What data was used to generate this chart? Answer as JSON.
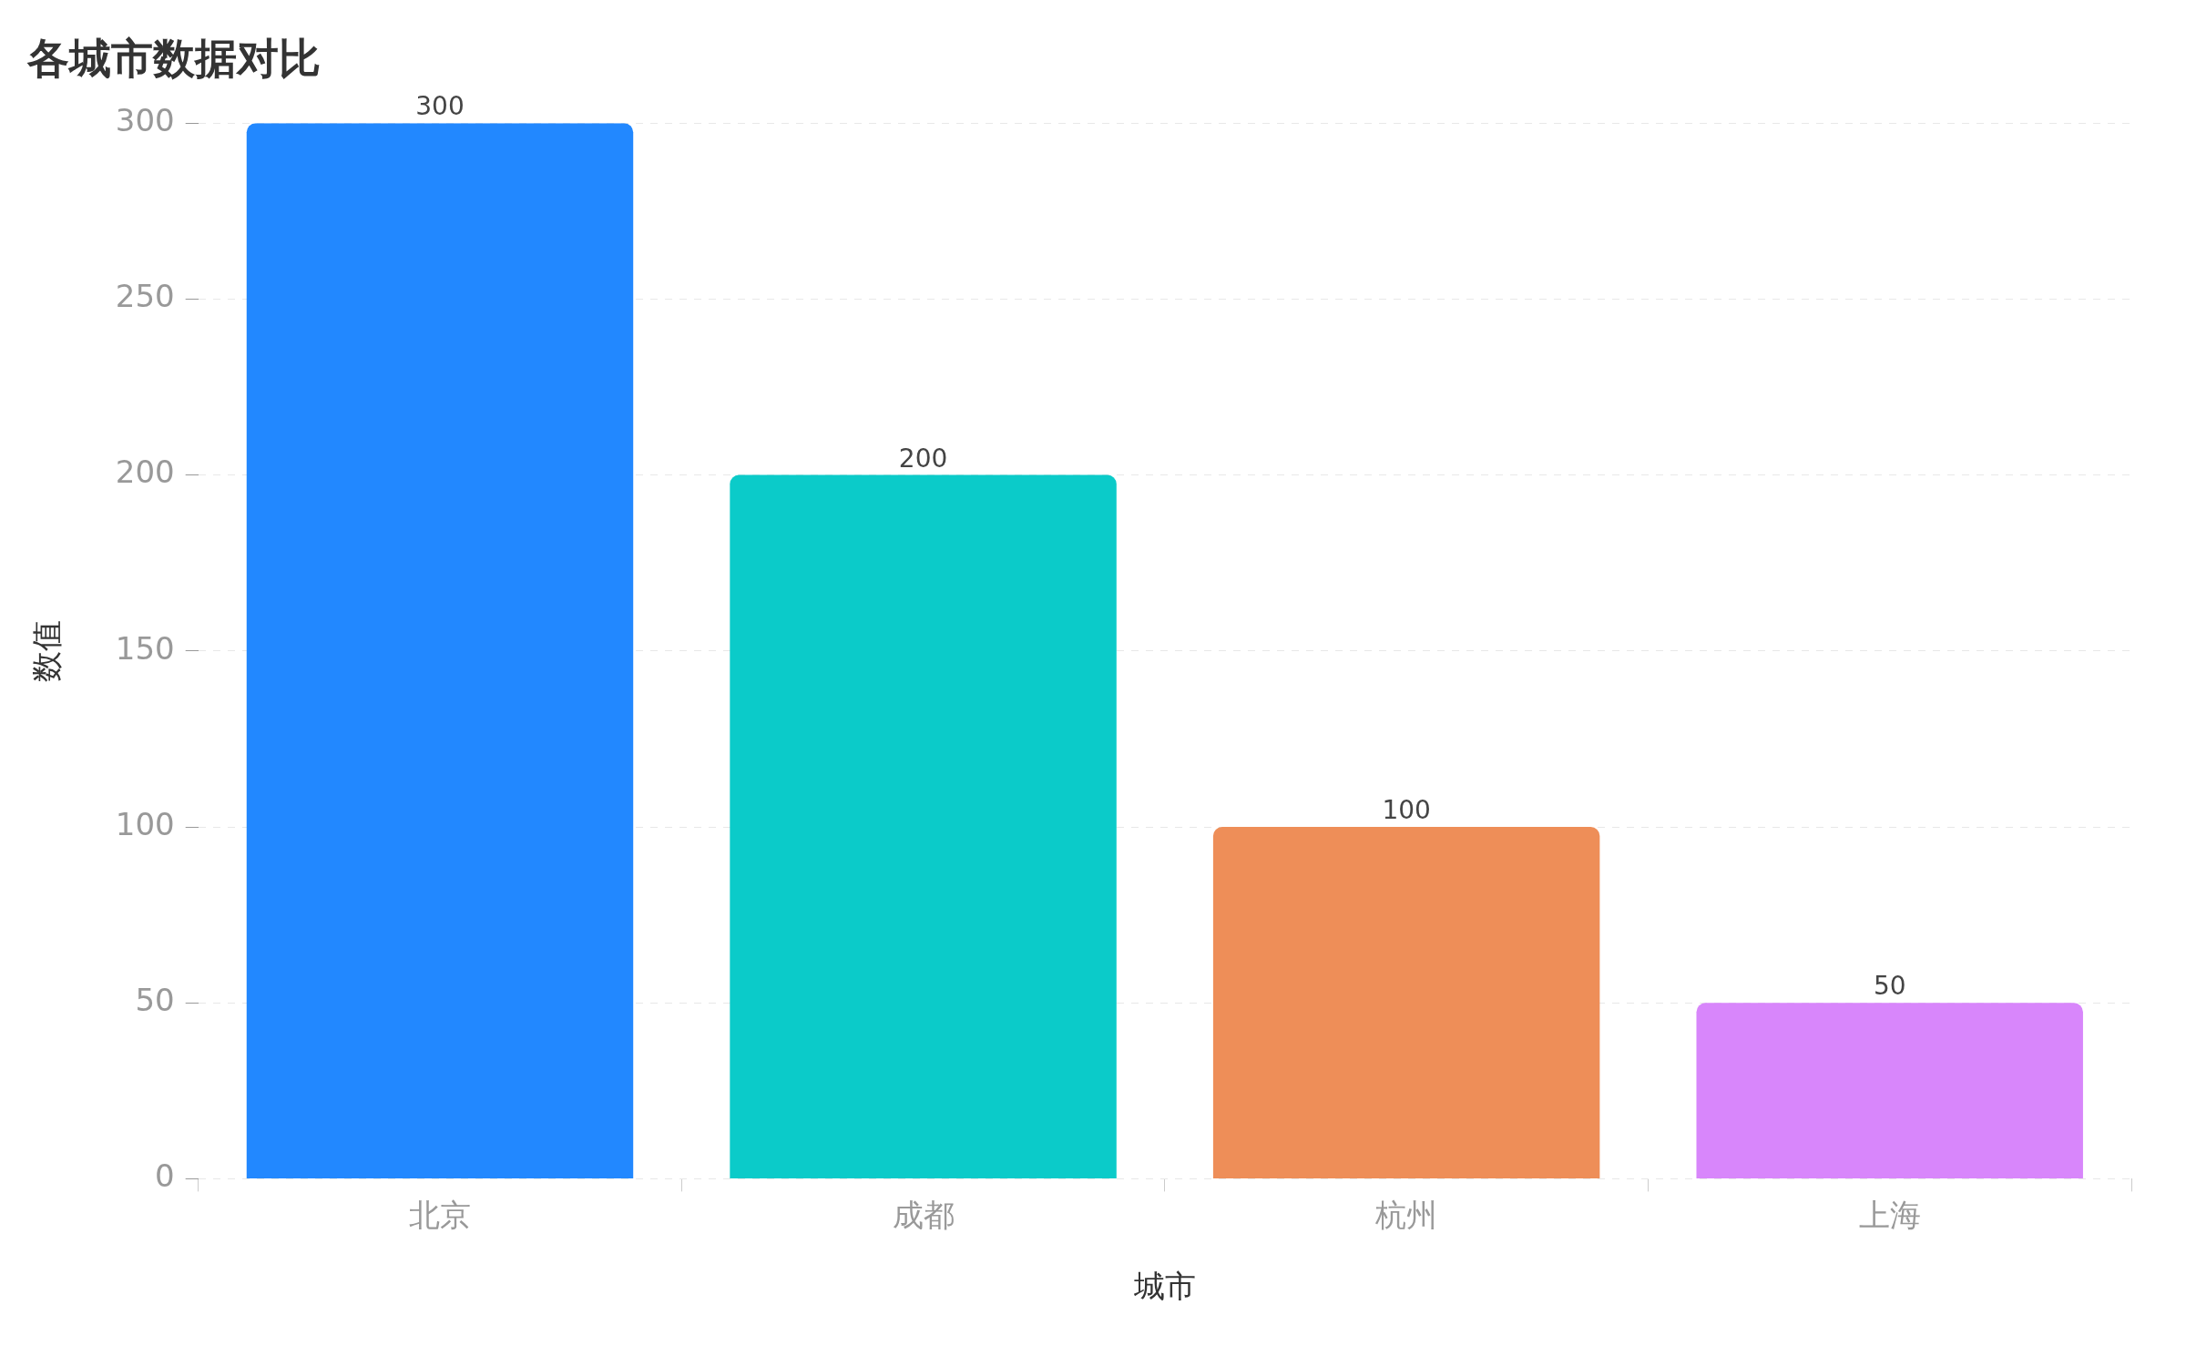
{
  "chart_data": {
    "type": "bar",
    "title": "各城市数据对比",
    "xlabel": "城市",
    "ylabel": "数值",
    "categories": [
      "北京",
      "成都",
      "杭州",
      "上海"
    ],
    "values": [
      300,
      200,
      100,
      50
    ],
    "colors": [
      "#2288ff",
      "#0bcbc9",
      "#ee8e58",
      "#d886fb"
    ],
    "ylim": [
      0,
      300
    ],
    "yticks": [
      0,
      50,
      100,
      150,
      200,
      250,
      300
    ],
    "grid": "y",
    "data_labels": true
  }
}
